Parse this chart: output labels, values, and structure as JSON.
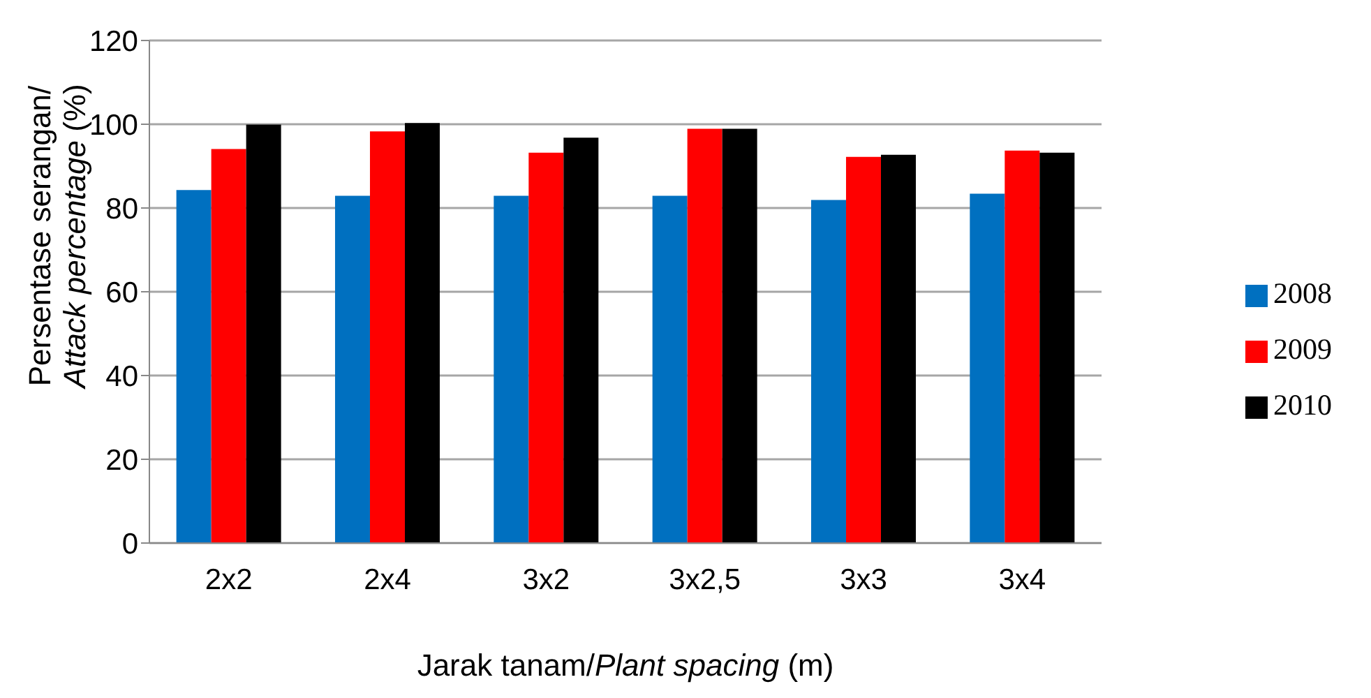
{
  "chart_data": {
    "type": "bar",
    "xlabel": "Jarak tanam/Plant spacing (m)",
    "ylabel": "Persentase serangan/Attack percentage (%)",
    "categories": [
      "2x2",
      "2x4",
      "3x2",
      "3x2,5",
      "3x3",
      "3x4"
    ],
    "series": [
      {
        "name": "2008",
        "color": "#0070c0",
        "values": [
          84.3,
          82.9,
          82.9,
          82.9,
          81.9,
          83.4
        ]
      },
      {
        "name": "2009",
        "color": "#ff0000",
        "values": [
          94.1,
          98.3,
          93.2,
          98.9,
          92.2,
          93.7
        ]
      },
      {
        "name": "2010",
        "color": "#000000",
        "values": [
          99.9,
          100.3,
          96.8,
          98.9,
          92.7,
          93.2
        ]
      }
    ],
    "ylim": [
      0,
      120
    ],
    "yticks": [
      0,
      20,
      40,
      60,
      80,
      100,
      120
    ],
    "grid": "y",
    "legend": "right"
  }
}
